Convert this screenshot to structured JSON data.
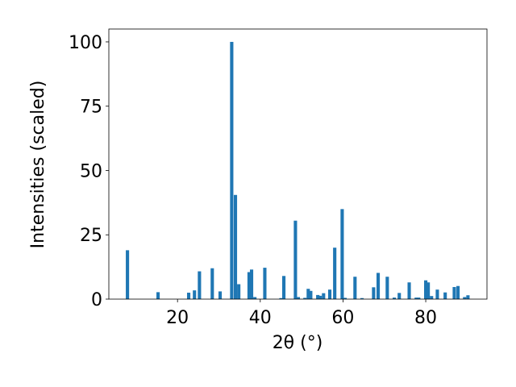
{
  "chart_data": {
    "type": "bar",
    "xlabel": "2θ (°)",
    "ylabel": "Intensities (scaled)",
    "color": "#1f77b4",
    "x": [
      7.9,
      15.3,
      22.7,
      24.1,
      25.3,
      28.4,
      30.3,
      33.1,
      34.0,
      34.8,
      37.3,
      37.9,
      38.7,
      41.1,
      45.0,
      45.7,
      48.5,
      49.2,
      50.8,
      51.6,
      52.2,
      53.9,
      54.5,
      55.3,
      56.8,
      58.0,
      59.8,
      60.5,
      62.9,
      64.6,
      67.4,
      68.5,
      70.7,
      72.4,
      73.6,
      76.0,
      77.7,
      78.3,
      80.0,
      80.6,
      81.4,
      82.8,
      84.7,
      86.9,
      87.8,
      89.4,
      90.2
    ],
    "values": [
      19,
      2.7,
      2.5,
      3.4,
      10.8,
      12,
      3,
      100,
      40.5,
      5.8,
      10.5,
      11.5,
      0.8,
      12.2,
      0.4,
      9,
      30.5,
      0.8,
      0.5,
      4,
      3.2,
      1.6,
      1.3,
      2.3,
      3.7,
      20,
      35,
      0.5,
      8.7,
      0.4,
      4.6,
      10.2,
      8.7,
      0.6,
      2.4,
      6.5,
      0.6,
      0.6,
      7.3,
      6.5,
      1.2,
      3.7,
      2.6,
      4.7,
      5.1,
      0.8,
      1.5
    ],
    "xlim": [
      3.4,
      94.8
    ],
    "ylim": [
      0,
      105
    ],
    "xticks": [
      20,
      40,
      60,
      80
    ],
    "yticks": [
      0,
      25,
      50,
      75,
      100
    ]
  }
}
